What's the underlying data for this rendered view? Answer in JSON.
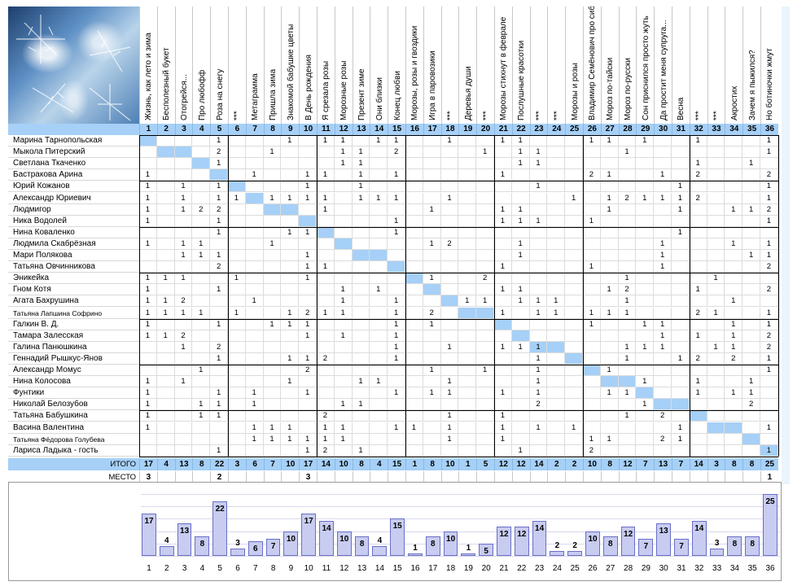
{
  "columns": [
    {
      "n": "1",
      "title": "Жизнь, как лето и зима"
    },
    {
      "n": "2",
      "title": "Бесполезный букет"
    },
    {
      "n": "3",
      "title": "Отогрейся..."
    },
    {
      "n": "4",
      "title": "Про любофф"
    },
    {
      "n": "5",
      "title": "Роза на снегу"
    },
    {
      "n": "6",
      "title": "***"
    },
    {
      "n": "7",
      "title": "Метаграмма"
    },
    {
      "n": "8",
      "title": "Пришла зима"
    },
    {
      "n": "9",
      "title": "Знакомой бабушке цветы"
    },
    {
      "n": "10",
      "title": "В День рождения"
    },
    {
      "n": "11",
      "title": "Я срезала розы"
    },
    {
      "n": "12",
      "title": "Морозные розы"
    },
    {
      "n": "13",
      "title": "Презент зиме"
    },
    {
      "n": "14",
      "title": "Они близки"
    },
    {
      "n": "15",
      "title": "Конец любви"
    },
    {
      "n": "16",
      "title": "Морозы, розы и гвоздики"
    },
    {
      "n": "17",
      "title": "Игра в паровозики"
    },
    {
      "n": "18",
      "title": "***"
    },
    {
      "n": "19",
      "title": "Деревья души"
    },
    {
      "n": "20",
      "title": "***"
    },
    {
      "n": "21",
      "title": "Морозы стихнут в феврале"
    },
    {
      "n": "22",
      "title": "Послушные красотки"
    },
    {
      "n": "23",
      "title": "***"
    },
    {
      "n": "24",
      "title": "***"
    },
    {
      "n": "25",
      "title": "Морозы и розы"
    },
    {
      "n": "26",
      "title": "Владимир Семёнович про сибирские морозы"
    },
    {
      "n": "27",
      "title": "Мороз по-тайски"
    },
    {
      "n": "28",
      "title": "Мороз по-русски"
    },
    {
      "n": "29",
      "title": "Сон приснился просто жуть"
    },
    {
      "n": "30",
      "title": "Да простит меня супруга..."
    },
    {
      "n": "31",
      "title": "Весна"
    },
    {
      "n": "32",
      "title": "***"
    },
    {
      "n": "33",
      "title": "***"
    },
    {
      "n": "34",
      "title": "Акростих"
    },
    {
      "n": "35",
      "title": "Зачем я пыжился?"
    },
    {
      "n": "36",
      "title": "Но ботиночки жмут"
    }
  ],
  "rows": [
    {
      "name": "Марина Тарнопольская",
      "small": false,
      "vals": {
        "5": "1",
        "9": "1",
        "11": "1",
        "12": "1",
        "14": "1",
        "15": "1",
        "18": "1",
        "21": "1",
        "22": "1",
        "26": "1",
        "27": "1",
        "29": "1",
        "32": "1",
        "36": "1"
      }
    },
    {
      "name": "Мыкола Питерский",
      "small": false,
      "vals": {
        "5": "2",
        "8": "1",
        "12": "1",
        "13": "1",
        "15": "2",
        "20": "1",
        "22": "1",
        "23": "1",
        "28": "1",
        "36": "1"
      }
    },
    {
      "name": "Светлана Ткаченко",
      "small": false,
      "vals": {
        "5": "1",
        "12": "1",
        "13": "1",
        "22": "1",
        "23": "1",
        "32": "1",
        "35": "1"
      }
    },
    {
      "name": "Бастракова Арина",
      "small": false,
      "vals": {
        "1": "1",
        "7": "1",
        "10": "1",
        "11": "1",
        "13": "1",
        "15": "1",
        "21": "1",
        "26": "2",
        "27": "1",
        "30": "1",
        "32": "2",
        "36": "2"
      }
    },
    {
      "name": "Юрий Кожанов",
      "small": false,
      "vals": {
        "1": "1",
        "3": "1",
        "5": "1",
        "10": "1",
        "13": "1",
        "23": "1",
        "31": "1",
        "36": "1"
      }
    },
    {
      "name": "Александр Юриевич",
      "small": false,
      "vals": {
        "1": "1",
        "3": "1",
        "5": "1",
        "6": "1",
        "8": "1",
        "9": "1",
        "10": "1",
        "11": "1",
        "13": "1",
        "14": "1",
        "15": "1",
        "18": "1",
        "25": "1",
        "27": "1",
        "28": "2",
        "29": "1",
        "30": "1",
        "31": "1",
        "32": "2",
        "36": "1"
      }
    },
    {
      "name": "Людмигор",
      "small": false,
      "vals": {
        "1": "1",
        "3": "1",
        "4": "2",
        "5": "2",
        "11": "1",
        "17": "1",
        "21": "1",
        "22": "1",
        "27": "1",
        "31": "1",
        "34": "1",
        "35": "1",
        "36": "2"
      }
    },
    {
      "name": "Ника Водолей",
      "small": false,
      "vals": {
        "1": "1",
        "5": "1",
        "15": "1",
        "21": "1",
        "22": "1",
        "23": "1",
        "26": "1",
        "36": "1"
      }
    },
    {
      "name": "Нина Коваленко",
      "small": false,
      "vals": {
        "5": "1",
        "9": "1",
        "10": "1",
        "15": "1",
        "31": "1"
      }
    },
    {
      "name": "Людмила Скабрёзная",
      "small": false,
      "vals": {
        "1": "1",
        "3": "1",
        "4": "1",
        "8": "1",
        "17": "1",
        "18": "2",
        "22": "1",
        "30": "1",
        "34": "1",
        "36": "1"
      }
    },
    {
      "name": "Мари Полякова",
      "small": false,
      "vals": {
        "3": "1",
        "4": "1",
        "5": "1",
        "10": "1",
        "22": "1",
        "30": "1",
        "35": "1",
        "36": "1"
      }
    },
    {
      "name": "Татьяна Овчинникова",
      "small": false,
      "vals": {
        "5": "2",
        "10": "1",
        "11": "1",
        "21": "1",
        "26": "1",
        "30": "1",
        "36": "2"
      }
    },
    {
      "name": "Эникейка",
      "small": false,
      "vals": {
        "1": "1",
        "2": "1",
        "3": "1",
        "6": "1",
        "10": "1",
        "17": "1",
        "20": "2",
        "28": "1",
        "33": "1"
      }
    },
    {
      "name": "Гном Котя",
      "small": false,
      "vals": {
        "1": "1",
        "5": "1",
        "12": "1",
        "14": "1",
        "21": "1",
        "22": "1",
        "27": "1",
        "28": "2",
        "32": "1",
        "36": "2"
      }
    },
    {
      "name": "Агата Бахрушина",
      "small": false,
      "vals": {
        "1": "1",
        "2": "1",
        "3": "2",
        "7": "1",
        "12": "1",
        "15": "1",
        "19": "1",
        "20": "1",
        "22": "1",
        "23": "1",
        "24": "1",
        "28": "1",
        "34": "1"
      }
    },
    {
      "name": "Татьяна Лапшина Софрино",
      "small": true,
      "vals": {
        "1": "1",
        "2": "1",
        "3": "1",
        "4": "1",
        "6": "1",
        "9": "1",
        "10": "2",
        "11": "1",
        "12": "1",
        "15": "1",
        "17": "2",
        "21": "1",
        "23": "1",
        "24": "1",
        "26": "1",
        "27": "1",
        "28": "1",
        "32": "2",
        "33": "1",
        "36": "1"
      }
    },
    {
      "name": "Галкин В. Д.",
      "small": false,
      "vals": {
        "1": "1",
        "5": "1",
        "8": "1",
        "9": "1",
        "10": "1",
        "15": "1",
        "17": "1",
        "26": "1",
        "29": "1",
        "30": "1",
        "34": "1",
        "36": "1"
      }
    },
    {
      "name": "Тамара Залесская",
      "small": false,
      "vals": {
        "1": "1",
        "2": "1",
        "3": "2",
        "10": "1",
        "12": "1",
        "15": "1",
        "30": "1",
        "32": "1",
        "34": "1",
        "36": "2"
      }
    },
    {
      "name": "Галина Панюшкина",
      "small": false,
      "vals": {
        "3": "1",
        "5": "2",
        "15": "1",
        "18": "1",
        "21": "1",
        "22": "1",
        "23": "1",
        "28": "1",
        "29": "1",
        "30": "1",
        "33": "1",
        "34": "1",
        "36": "2"
      }
    },
    {
      "name": "Геннадий Рышкус-Янов",
      "small": false,
      "vals": {
        "5": "1",
        "9": "1",
        "10": "1",
        "11": "2",
        "15": "1",
        "23": "1",
        "28": "1",
        "31": "1",
        "32": "2",
        "34": "2",
        "36": "1"
      }
    },
    {
      "name": "Александр Момус",
      "small": false,
      "vals": {
        "4": "1",
        "10": "2",
        "17": "1",
        "20": "1",
        "23": "1",
        "27": "1",
        "36": "1"
      }
    },
    {
      "name": "Нина Колосова",
      "small": false,
      "vals": {
        "1": "1",
        "3": "1",
        "9": "1",
        "13": "1",
        "14": "1",
        "18": "1",
        "23": "1",
        "29": "1",
        "32": "1",
        "35": "1"
      }
    },
    {
      "name": "Фунтики",
      "small": false,
      "vals": {
        "1": "1",
        "5": "1",
        "7": "1",
        "10": "1",
        "15": "1",
        "17": "1",
        "18": "1",
        "21": "1",
        "23": "1",
        "27": "1",
        "28": "1",
        "32": "1",
        "34": "1",
        "35": "1"
      }
    },
    {
      "name": "Николай Белозубов",
      "small": false,
      "vals": {
        "1": "1",
        "4": "1",
        "5": "1",
        "7": "1",
        "12": "1",
        "13": "1",
        "23": "2",
        "29": "1",
        "35": "2"
      }
    },
    {
      "name": "Татьяна Бабушкина",
      "small": false,
      "vals": {
        "1": "1",
        "4": "1",
        "5": "1",
        "11": "2",
        "18": "1",
        "21": "1",
        "28": "1",
        "30": "2"
      }
    },
    {
      "name": "Васина Валентина",
      "small": false,
      "vals": {
        "1": "1",
        "7": "1",
        "8": "1",
        "9": "1",
        "11": "1",
        "12": "1",
        "15": "1",
        "16": "1",
        "18": "1",
        "21": "1",
        "23": "1",
        "25": "1",
        "31": "1",
        "36": "1"
      }
    },
    {
      "name": "Татьяна Фёдорова Голубева",
      "small": true,
      "vals": {
        "7": "1",
        "8": "1",
        "9": "1",
        "10": "1",
        "11": "1",
        "12": "1",
        "18": "1",
        "21": "1",
        "26": "1",
        "27": "1",
        "30": "2",
        "31": "1"
      }
    },
    {
      "name": "Лариса Ладыка - гость",
      "small": false,
      "vals": {
        "5": "1",
        "10": "1",
        "11": "2",
        "13": "1",
        "22": "1",
        "26": "2",
        "36": "1"
      }
    }
  ],
  "diagonal": [
    [
      0,
      1
    ],
    [
      1,
      2
    ],
    [
      1,
      3
    ],
    [
      2,
      4
    ],
    [
      3,
      5
    ],
    [
      4,
      6
    ],
    [
      5,
      7
    ],
    [
      6,
      8
    ],
    [
      6,
      9
    ],
    [
      7,
      10
    ],
    [
      8,
      11
    ],
    [
      9,
      12
    ],
    [
      10,
      13
    ],
    [
      10,
      14
    ],
    [
      11,
      15
    ],
    [
      12,
      16
    ],
    [
      13,
      17
    ],
    [
      14,
      18
    ],
    [
      15,
      19
    ],
    [
      15,
      20
    ],
    [
      16,
      21
    ],
    [
      17,
      22
    ],
    [
      18,
      23
    ],
    [
      18,
      24
    ],
    [
      19,
      25
    ],
    [
      20,
      26
    ],
    [
      21,
      27
    ],
    [
      21,
      28
    ],
    [
      22,
      29
    ],
    [
      23,
      30
    ],
    [
      23,
      31
    ],
    [
      24,
      32
    ],
    [
      25,
      33
    ],
    [
      25,
      34
    ],
    [
      26,
      35
    ],
    [
      27,
      36
    ]
  ],
  "totals_label": "ИТОГО",
  "totals": [
    "17",
    "4",
    "13",
    "8",
    "22",
    "3",
    "6",
    "7",
    "10",
    "17",
    "14",
    "10",
    "8",
    "4",
    "15",
    "1",
    "8",
    "10",
    "1",
    "5",
    "12",
    "12",
    "14",
    "2",
    "2",
    "10",
    "8",
    "12",
    "7",
    "13",
    "7",
    "14",
    "3",
    "8",
    "8",
    "25"
  ],
  "place_label": "МЕСТО",
  "places": {
    "1": "3",
    "5": "2",
    "10": "3",
    "36": "1"
  },
  "chart_data": {
    "type": "bar",
    "title": "",
    "xlabel": "",
    "ylabel": "",
    "categories": [
      "1",
      "2",
      "3",
      "4",
      "5",
      "6",
      "7",
      "8",
      "9",
      "10",
      "11",
      "12",
      "13",
      "14",
      "15",
      "16",
      "17",
      "18",
      "19",
      "20",
      "21",
      "22",
      "23",
      "24",
      "25",
      "26",
      "27",
      "28",
      "29",
      "30",
      "31",
      "32",
      "33",
      "34",
      "35",
      "36"
    ],
    "values": [
      17,
      4,
      13,
      8,
      22,
      3,
      6,
      7,
      10,
      17,
      14,
      10,
      8,
      4,
      15,
      1,
      8,
      10,
      1,
      5,
      12,
      12,
      14,
      2,
      2,
      10,
      8,
      12,
      7,
      13,
      7,
      14,
      3,
      8,
      8,
      25
    ],
    "ylim": [
      0,
      25
    ],
    "grid": true,
    "bar_color": "#c8ccf0",
    "bar_border": "#6a6fc6"
  }
}
